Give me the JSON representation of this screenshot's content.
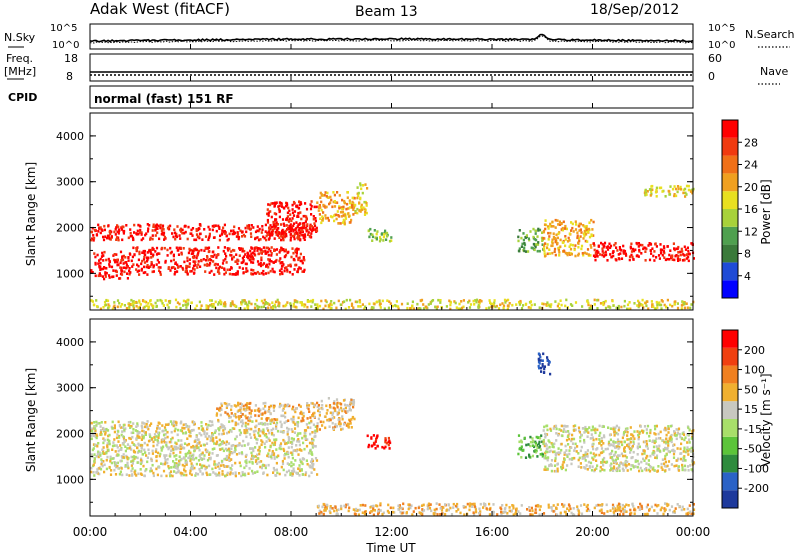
{
  "header": {
    "title": "Adak West (fitACF)",
    "beam": "Beam 13",
    "date": "18/Sep/2012"
  },
  "params": {
    "nsky_label": "N.Sky",
    "nsearch_label": "N.Search",
    "freq_label_line1": "Freq.",
    "freq_label_line2": "[MHz]",
    "nave_label": "Nave",
    "cpid_label": "CPID",
    "cpid_text": "normal (fast) 151 RF",
    "noise_ticks": [
      "10^5",
      "10^0"
    ],
    "freq_ticks": [
      "18",
      "8"
    ],
    "nave_ticks": [
      "60",
      "0"
    ]
  },
  "colors": {
    "power_scale": [
      "#0000ff",
      "#1f4bd6",
      "#3a7a3a",
      "#4fa04f",
      "#a8d23a",
      "#e8e020",
      "#f0a020",
      "#f07018",
      "#f03a10",
      "#ff0000"
    ],
    "velocity_scale": [
      "#1f3a9c",
      "#2a62c6",
      "#2e8b3d",
      "#5cc43a",
      "#a8df6a",
      "#c8c8c0",
      "#f0b030",
      "#f08020",
      "#f04010",
      "#ff0000"
    ]
  },
  "chart_data": [
    {
      "type": "heatmap",
      "name": "power",
      "ylabel": "Slant Range [km]",
      "yticks": [
        "1000",
        "2000",
        "3000",
        "4000"
      ],
      "ylim": [
        200,
        4500
      ],
      "colorbar_label": "Power [dB]",
      "colorbar_ticks": [
        "4",
        "8",
        "12",
        "16",
        "20",
        "24",
        "28"
      ],
      "bands": [
        {
          "t0": 0,
          "t1": 1.5,
          "r0": 900,
          "r1": 1500,
          "level": 9
        },
        {
          "t0": 0,
          "t1": 9,
          "r0": 1750,
          "r1": 2100,
          "level": 9
        },
        {
          "t0": 1.5,
          "t1": 8.5,
          "r0": 1000,
          "r1": 1600,
          "level": 9
        },
        {
          "t0": 7,
          "t1": 9,
          "r0": 1800,
          "r1": 2600,
          "level": 9
        },
        {
          "t0": 9,
          "t1": 10.5,
          "r0": 2100,
          "r1": 2800,
          "level": 6
        },
        {
          "t0": 10.5,
          "t1": 11,
          "r0": 2300,
          "r1": 3000,
          "level": 5
        },
        {
          "t0": 11,
          "t1": 12,
          "r0": 1700,
          "r1": 2000,
          "level": 4
        },
        {
          "t0": 17,
          "t1": 18,
          "r0": 1500,
          "r1": 2000,
          "level": 3
        },
        {
          "t0": 18,
          "t1": 20,
          "r0": 1400,
          "r1": 2200,
          "level": 6
        },
        {
          "t0": 20,
          "t1": 24,
          "r0": 1300,
          "r1": 1700,
          "level": 9
        },
        {
          "t0": 22,
          "t1": 24,
          "r0": 2700,
          "r1": 2950,
          "level": 5
        },
        {
          "t0": 0,
          "t1": 24,
          "r0": 250,
          "r1": 450,
          "level": 5
        }
      ]
    },
    {
      "type": "heatmap",
      "name": "velocity",
      "ylabel": "Slant Range [km]",
      "yticks": [
        "1000",
        "2000",
        "3000",
        "4000"
      ],
      "ylim": [
        200,
        4500
      ],
      "colorbar_label": "Velocity [m s⁻¹]",
      "colorbar_ticks": [
        "200",
        "100",
        "50",
        "15",
        "-15",
        "-50",
        "-100",
        "-200"
      ],
      "xlabel": "Time UT",
      "xticks": [
        "00:00",
        "04:00",
        "08:00",
        "12:00",
        "16:00",
        "20:00",
        "00:00"
      ],
      "xlim": [
        0,
        24
      ],
      "bands": [
        {
          "t0": 0,
          "t1": 9,
          "r0": 1100,
          "r1": 2300,
          "level": 5
        },
        {
          "t0": 5,
          "t1": 9,
          "r0": 2300,
          "r1": 2700,
          "level": 6
        },
        {
          "t0": 9,
          "t1": 10.5,
          "r0": 2100,
          "r1": 2800,
          "level": 6
        },
        {
          "t0": 11,
          "t1": 12,
          "r0": 1700,
          "r1": 2000,
          "level": 9
        },
        {
          "t0": 17,
          "t1": 18,
          "r0": 1500,
          "r1": 2000,
          "level": 3
        },
        {
          "t0": 17.8,
          "t1": 18.3,
          "r0": 3300,
          "r1": 3800,
          "level": 0
        },
        {
          "t0": 18,
          "t1": 24,
          "r0": 1200,
          "r1": 2200,
          "level": 5
        },
        {
          "t0": 9,
          "t1": 24,
          "r0": 250,
          "r1": 500,
          "level": 6
        }
      ]
    }
  ]
}
